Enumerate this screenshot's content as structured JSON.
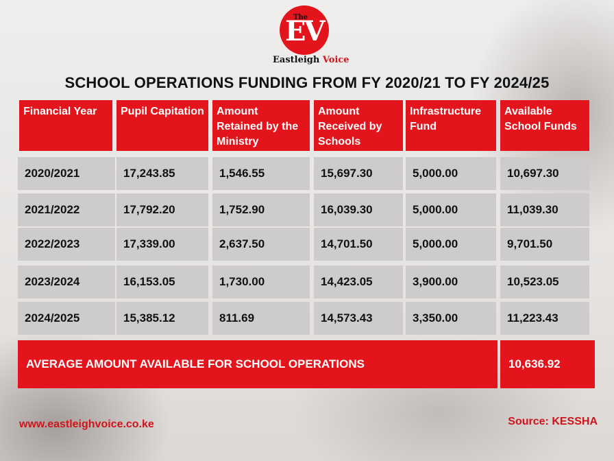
{
  "logo": {
    "the": "The",
    "ev_e": "E",
    "ev_v": "V",
    "name_part1": "Eastleigh",
    "name_part2": "Voice"
  },
  "chart_data": {
    "type": "table",
    "title": "SCHOOL OPERATIONS FUNDING FROM FY 2020/21 TO FY 2024/25",
    "columns": [
      "Financial Year",
      "Pupil Capitation",
      "Amount Retained by the Ministry",
      "Amount Received by Schools",
      "Infrastructure Fund",
      "Available School Funds"
    ],
    "rows": [
      [
        "2020/2021",
        "17,243.85",
        "1,546.55",
        "15,697.30",
        "5,000.00",
        "10,697.30"
      ],
      [
        "2021/2022",
        "17,792.20",
        "1,752.90",
        "16,039.30",
        "5,000.00",
        "11,039.30"
      ],
      [
        "2022/2023",
        "17,339.00",
        "2,637.50",
        "14,701.50",
        "5,000.00",
        "9,701.50"
      ],
      [
        "2023/2024",
        "16,153.05",
        "1,730.00",
        "14,423.05",
        "3,900.00",
        "10,523.05"
      ],
      [
        "2024/2025",
        "15,385.12",
        "811.69",
        "14,573.43",
        "3,350.00",
        "11,223.43"
      ]
    ],
    "summary": {
      "label": "AVERAGE AMOUNT AVAILABLE FOR SCHOOL OPERATIONS",
      "value": "10,636.92"
    }
  },
  "footer": {
    "website": "www.eastleighvoice.co.ke",
    "source": "Source: KESSHA"
  },
  "colors": {
    "accent": "#e4141c",
    "row_bg": "#cdcbcb",
    "text": "#111111"
  }
}
